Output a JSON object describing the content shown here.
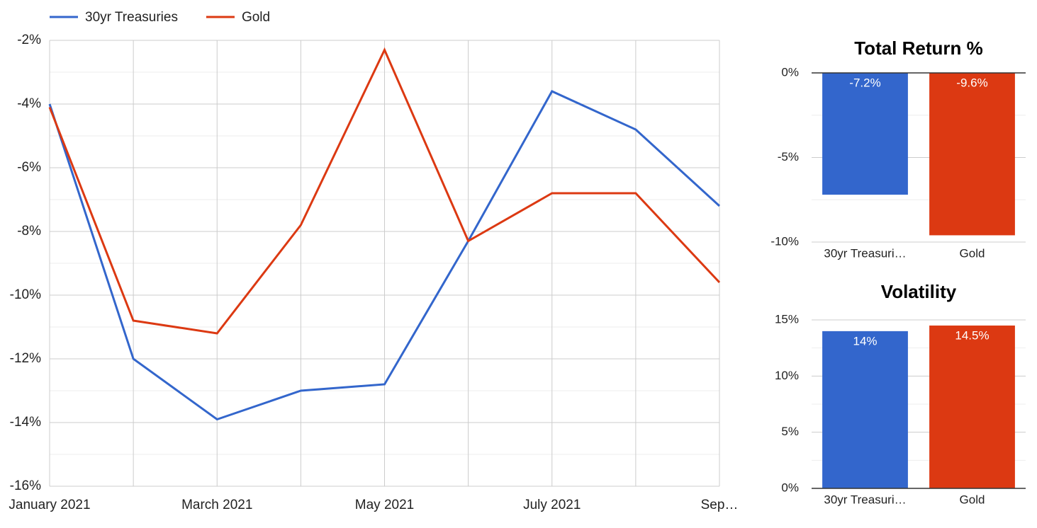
{
  "chart_data": [
    {
      "type": "line",
      "categories": [
        "January 2021",
        null,
        "March 2021",
        null,
        "May 2021",
        null,
        "July 2021",
        null,
        "Sep…"
      ],
      "series": [
        {
          "name": "30yr Treasuries",
          "color": "#3366cc",
          "values": [
            -4.0,
            -12.0,
            -13.9,
            -13.0,
            -12.8,
            -8.3,
            -3.6,
            -4.8,
            -7.2
          ]
        },
        {
          "name": "Gold",
          "color": "#dc3912",
          "values": [
            -4.1,
            -10.8,
            -11.2,
            -7.8,
            -2.3,
            -8.3,
            -6.8,
            -6.8,
            -9.6
          ]
        }
      ],
      "ylim": [
        -16,
        -2
      ],
      "yticks": [
        {
          "value": -16,
          "label": "-16%"
        },
        {
          "value": -14,
          "label": "-14%"
        },
        {
          "value": -12,
          "label": "-12%"
        },
        {
          "value": -10,
          "label": "-10%"
        },
        {
          "value": -8,
          "label": "-8%"
        },
        {
          "value": -6,
          "label": "-6%"
        },
        {
          "value": -4,
          "label": "-4%"
        },
        {
          "value": -2,
          "label": "-2%"
        }
      ],
      "grid": true,
      "minor_grid": true,
      "legend": "top"
    },
    {
      "type": "bar",
      "title": "Total Return %",
      "categories": [
        "30yr Treasuri…",
        "Gold"
      ],
      "values": [
        -7.2,
        -9.6
      ],
      "value_labels": [
        "-7.2%",
        "-9.6%"
      ],
      "colors": [
        "#3366cc",
        "#dc3912"
      ],
      "ylim": [
        -10,
        0
      ],
      "yticks": [
        {
          "value": -10,
          "label": "-10%"
        },
        {
          "value": -5,
          "label": "-5%"
        },
        {
          "value": 0,
          "label": "0%"
        }
      ],
      "grid": true,
      "minor_grid": true
    },
    {
      "type": "bar",
      "title": "Volatility",
      "categories": [
        "30yr Treasuri…",
        "Gold"
      ],
      "values": [
        14,
        14.5
      ],
      "value_labels": [
        "14%",
        "14.5%"
      ],
      "colors": [
        "#3366cc",
        "#dc3912"
      ],
      "ylim": [
        0,
        15
      ],
      "yticks": [
        {
          "value": 0,
          "label": "0%"
        },
        {
          "value": 5,
          "label": "5%"
        },
        {
          "value": 10,
          "label": "10%"
        },
        {
          "value": 15,
          "label": "15%"
        }
      ],
      "grid": true,
      "minor_grid": true
    }
  ]
}
